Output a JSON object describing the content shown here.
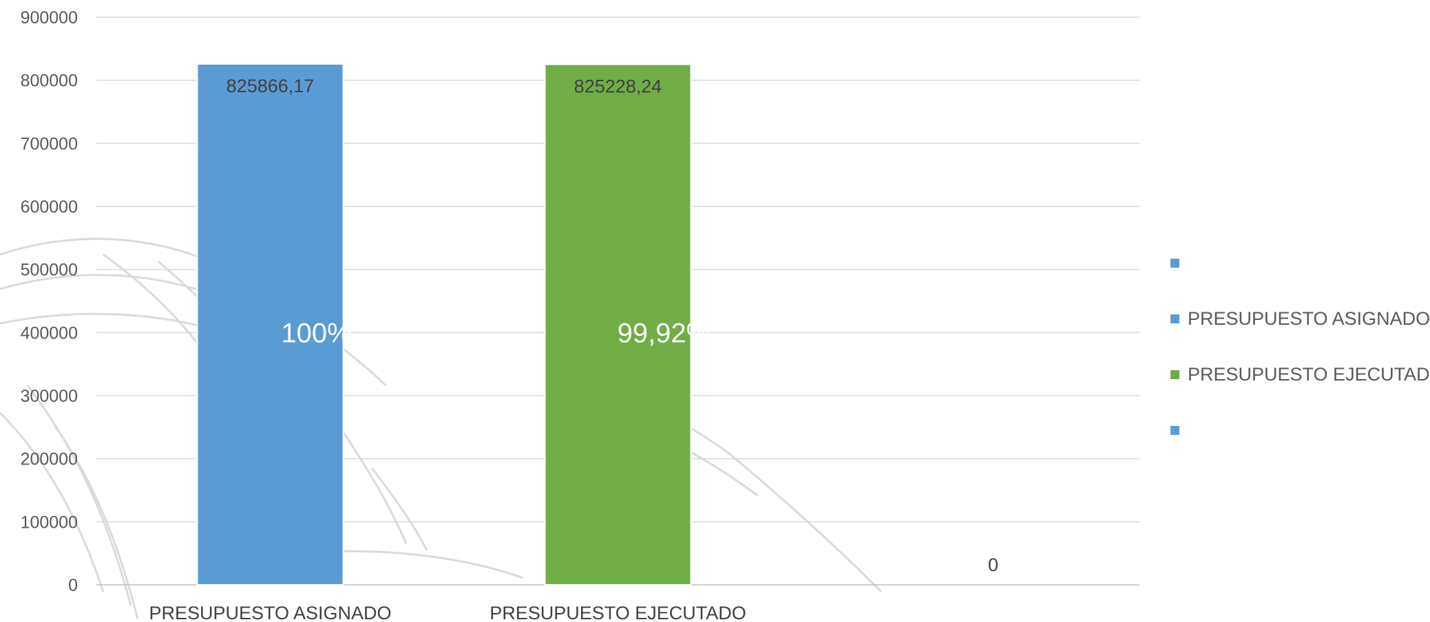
{
  "chart_data": {
    "type": "bar",
    "categories": [
      "PRESUPUESTO ASIGNADO",
      "PRESUPUESTO EJECUTADO",
      ""
    ],
    "values": [
      825866.17,
      825228.24,
      0
    ],
    "value_labels": [
      "825866,17",
      "825228,24",
      "0"
    ],
    "percent_labels": [
      "100%",
      "99,92%",
      ""
    ],
    "bar_colors": [
      "#5b9bd5",
      "#70ad47",
      "#5b9bd5"
    ],
    "ylim": [
      0,
      900000
    ],
    "yticks": [
      0,
      100000,
      200000,
      300000,
      400000,
      500000,
      600000,
      700000,
      800000,
      900000
    ],
    "grid": true,
    "legend_position": "right",
    "legend": [
      {
        "label": "",
        "color": "#5b9bd5"
      },
      {
        "label": "PRESUPUESTO ASIGNADO",
        "color": "#5b9bd5"
      },
      {
        "label": "PRESUPUESTO EJECUTADO",
        "color": "#70ad47"
      },
      {
        "label": "",
        "color": "#5b9bd5"
      }
    ],
    "title": "",
    "xlabel": "",
    "ylabel": ""
  }
}
